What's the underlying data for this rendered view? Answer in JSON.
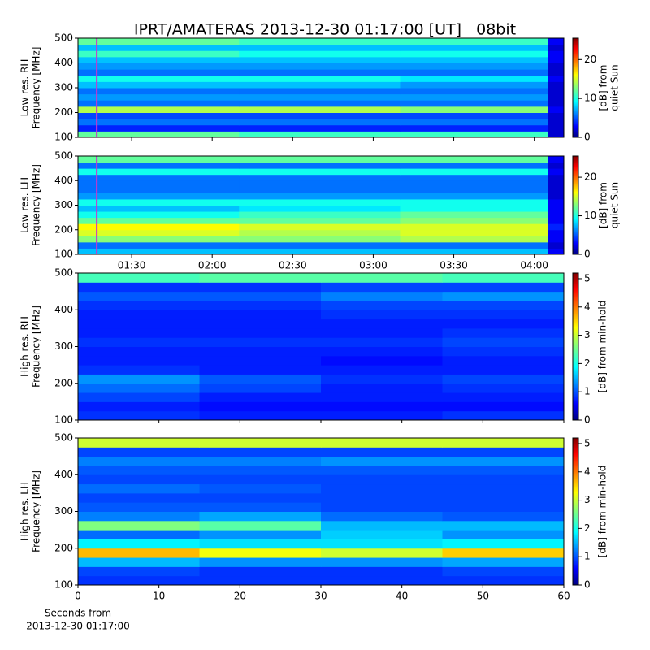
{
  "title": "IPRT/AMATERAS 2013-12-30 01:17:00 [UT]   08bit",
  "chart_data": [
    {
      "type": "heatmap",
      "ylabel": [
        "Low res. RH",
        "Frequency [MHz]"
      ],
      "xlim": [
        70,
        251
      ],
      "xticks": [
        90,
        120,
        150,
        180,
        210,
        240
      ],
      "xtick_labels": false,
      "ylim": [
        100,
        500
      ],
      "yticks": [
        100,
        200,
        300,
        400,
        500
      ],
      "marker_x": 77,
      "marker_color": "#cc33cc",
      "colorbar": {
        "label": [
          "[dB] from",
          "quiet Sun"
        ],
        "lim": [
          0,
          25.5
        ],
        "ticks": [
          0,
          10,
          20
        ]
      },
      "x": [
        70,
        130,
        190,
        245,
        251
      ],
      "y": [
        100,
        125,
        150,
        175,
        200,
        225,
        250,
        275,
        300,
        325,
        350,
        375,
        400,
        425,
        450,
        475,
        500
      ],
      "z": [
        [
          12,
          11,
          11,
          2
        ],
        [
          4,
          4,
          4,
          2
        ],
        [
          6,
          6,
          6,
          2
        ],
        [
          5,
          5,
          5,
          2
        ],
        [
          14,
          14,
          13,
          3
        ],
        [
          6,
          6,
          6,
          2
        ],
        [
          7,
          7,
          7,
          2
        ],
        [
          6,
          6,
          6,
          2
        ],
        [
          8,
          8,
          7,
          2
        ],
        [
          10,
          10,
          9,
          3
        ],
        [
          6,
          6,
          6,
          2
        ],
        [
          7,
          7,
          7,
          2
        ],
        [
          8,
          8,
          8,
          3
        ],
        [
          11,
          10,
          10,
          3
        ],
        [
          8,
          8,
          8,
          2
        ],
        [
          12,
          11,
          11,
          3
        ]
      ]
    },
    {
      "type": "heatmap",
      "ylabel": [
        "Low res. LH",
        "Frequency [MHz]"
      ],
      "xlim": [
        70,
        251
      ],
      "xticks": [
        {
          "value": 90,
          "label": "01:30"
        },
        {
          "value": 120,
          "label": "02:00"
        },
        {
          "value": 150,
          "label": "02:30"
        },
        {
          "value": 180,
          "label": "03:00"
        },
        {
          "value": 210,
          "label": "03:30"
        },
        {
          "value": 240,
          "label": "04:00"
        }
      ],
      "ylim": [
        100,
        500
      ],
      "yticks": [
        100,
        200,
        300,
        400,
        500
      ],
      "marker_x": 77,
      "marker_color": "#cc33cc",
      "colorbar": {
        "label": [
          "[dB] from",
          "quiet Sun"
        ],
        "lim": [
          0,
          25.5
        ],
        "ticks": [
          0,
          10,
          20
        ]
      },
      "x": [
        70,
        130,
        190,
        245,
        251
      ],
      "y": [
        100,
        125,
        150,
        175,
        200,
        225,
        250,
        275,
        300,
        325,
        350,
        375,
        400,
        425,
        450,
        475,
        500
      ],
      "z": [
        [
          8,
          8,
          8,
          3
        ],
        [
          6,
          6,
          6,
          2
        ],
        [
          13,
          13,
          14,
          3
        ],
        [
          15,
          14,
          15,
          3
        ],
        [
          16,
          15,
          15,
          4
        ],
        [
          12,
          12,
          13,
          3
        ],
        [
          10,
          11,
          12,
          3
        ],
        [
          8,
          9,
          10,
          3
        ],
        [
          10,
          10,
          10,
          3
        ],
        [
          7,
          7,
          7,
          2
        ],
        [
          6,
          6,
          6,
          2
        ],
        [
          6,
          6,
          6,
          2
        ],
        [
          6,
          6,
          6,
          2
        ],
        [
          10,
          10,
          10,
          3
        ],
        [
          6,
          6,
          6,
          2
        ],
        [
          12,
          12,
          12,
          3
        ]
      ]
    },
    {
      "type": "heatmap",
      "ylabel": [
        "High res. RH",
        "Frequency [MHz]"
      ],
      "xlim": [
        0,
        60
      ],
      "xticks": [
        0,
        10,
        20,
        30,
        40,
        50,
        60
      ],
      "xtick_labels": false,
      "ylim": [
        100,
        500
      ],
      "yticks": [
        100,
        200,
        300,
        400,
        500
      ],
      "colorbar": {
        "label": [
          "[dB] from min-hold"
        ],
        "lim": [
          0,
          5.2
        ],
        "ticks": [
          0,
          1,
          2,
          3,
          4,
          5
        ]
      },
      "x": [
        0,
        15,
        30,
        45,
        60
      ],
      "y": [
        100,
        125,
        150,
        175,
        200,
        225,
        250,
        275,
        300,
        325,
        350,
        375,
        400,
        425,
        450,
        475,
        500
      ],
      "z": [
        [
          0.9,
          0.8,
          0.8,
          0.9
        ],
        [
          0.8,
          0.7,
          0.7,
          0.7
        ],
        [
          1.0,
          0.8,
          0.8,
          0.8
        ],
        [
          1.2,
          1.0,
          0.8,
          0.9
        ],
        [
          1.4,
          1.1,
          0.9,
          1.0
        ],
        [
          0.9,
          0.8,
          0.8,
          0.8
        ],
        [
          0.8,
          0.8,
          0.7,
          0.8
        ],
        [
          0.8,
          0.8,
          0.8,
          0.9
        ],
        [
          0.9,
          0.9,
          0.9,
          1.0
        ],
        [
          0.8,
          0.8,
          0.8,
          0.9
        ],
        [
          0.8,
          0.8,
          0.8,
          0.8
        ],
        [
          0.8,
          0.8,
          0.9,
          0.9
        ],
        [
          0.9,
          0.9,
          1.0,
          1.0
        ],
        [
          1.1,
          1.1,
          1.3,
          1.4
        ],
        [
          0.9,
          0.9,
          1.0,
          1.0
        ],
        [
          2.3,
          2.4,
          2.4,
          2.3
        ]
      ]
    },
    {
      "type": "heatmap",
      "ylabel": [
        "High res. LH",
        "Frequency [MHz]"
      ],
      "xlim": [
        0,
        60
      ],
      "xticks": [
        0,
        10,
        20,
        30,
        40,
        50,
        60
      ],
      "xlabel": [
        "Seconds from",
        "2013-12-30 01:17:00"
      ],
      "ylim": [
        100,
        500
      ],
      "yticks": [
        100,
        200,
        300,
        400,
        500
      ],
      "colorbar": {
        "label": [
          "[dB] from min-hold"
        ],
        "lim": [
          0,
          5.2
        ],
        "ticks": [
          0,
          1,
          2,
          3,
          4,
          5
        ]
      },
      "x": [
        0,
        15,
        30,
        45,
        60
      ],
      "y": [
        100,
        125,
        150,
        175,
        200,
        225,
        250,
        275,
        300,
        325,
        350,
        375,
        400,
        425,
        450,
        475,
        500
      ],
      "z": [
        [
          0.9,
          0.9,
          0.9,
          0.9
        ],
        [
          1.0,
          0.9,
          0.9,
          1.0
        ],
        [
          1.6,
          1.4,
          1.4,
          1.5
        ],
        [
          3.6,
          3.2,
          3.0,
          3.5
        ],
        [
          1.9,
          1.8,
          1.8,
          1.9
        ],
        [
          1.2,
          1.4,
          1.7,
          1.4
        ],
        [
          2.6,
          2.4,
          1.6,
          1.6
        ],
        [
          1.3,
          1.5,
          1.2,
          1.1
        ],
        [
          1.1,
          1.1,
          1.0,
          1.0
        ],
        [
          1.0,
          1.0,
          1.0,
          1.0
        ],
        [
          1.2,
          1.1,
          1.0,
          1.0
        ],
        [
          1.0,
          1.0,
          1.0,
          1.0
        ],
        [
          1.1,
          1.1,
          1.1,
          1.1
        ],
        [
          1.3,
          1.3,
          1.4,
          1.4
        ],
        [
          1.0,
          1.0,
          1.0,
          1.0
        ],
        [
          3.0,
          3.0,
          3.0,
          3.0
        ]
      ]
    }
  ]
}
